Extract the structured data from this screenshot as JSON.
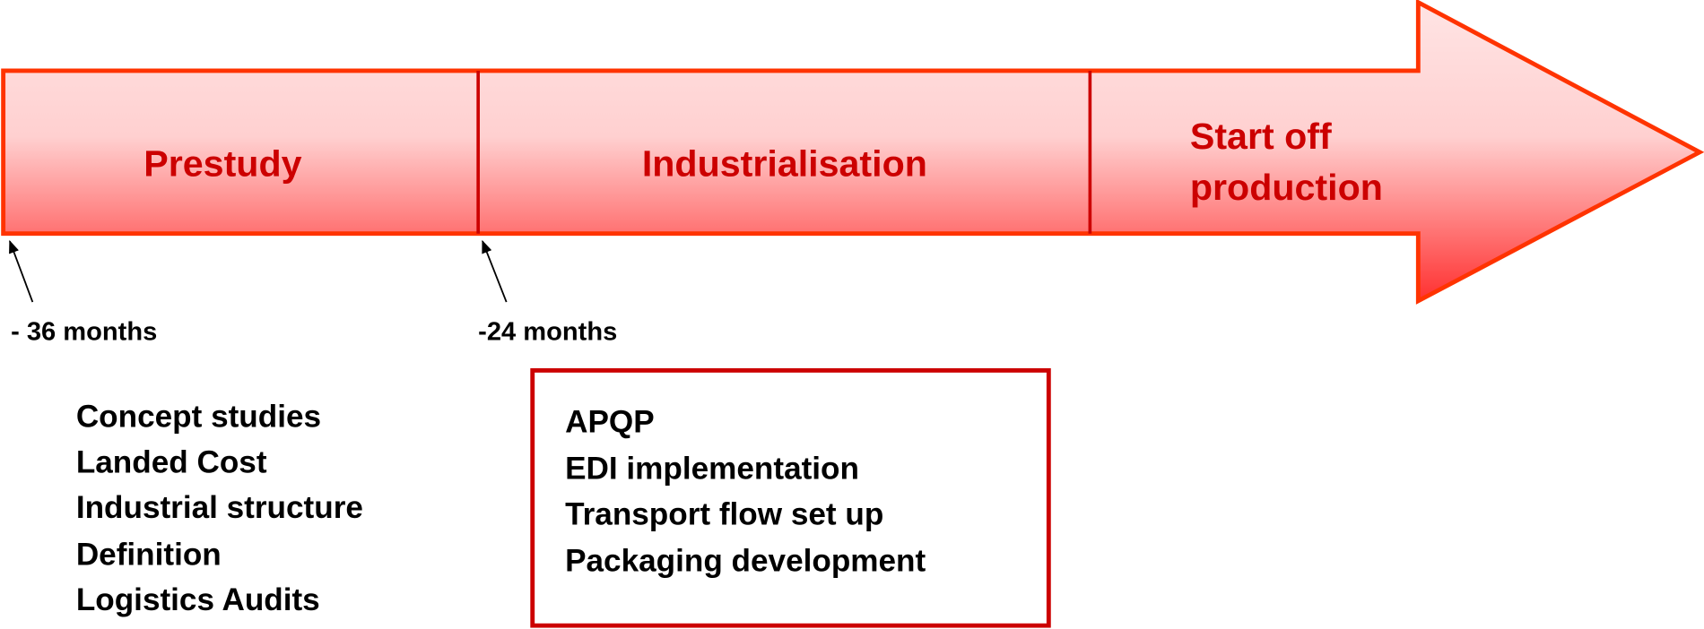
{
  "phases": [
    {
      "lines": [
        "Prestudy"
      ]
    },
    {
      "lines": [
        "Industrialisation"
      ]
    },
    {
      "lines": [
        "Start off",
        "production"
      ]
    }
  ],
  "milestones": [
    "- 36 months",
    "-24 months"
  ],
  "prestudy_tasks": [
    "Concept studies",
    "Landed Cost",
    "Industrial structure",
    "Definition",
    "Logistics Audits"
  ],
  "industrialisation_tasks": [
    "APQP",
    "EDI implementation",
    "Transport flow set up",
    "Packaging development"
  ]
}
